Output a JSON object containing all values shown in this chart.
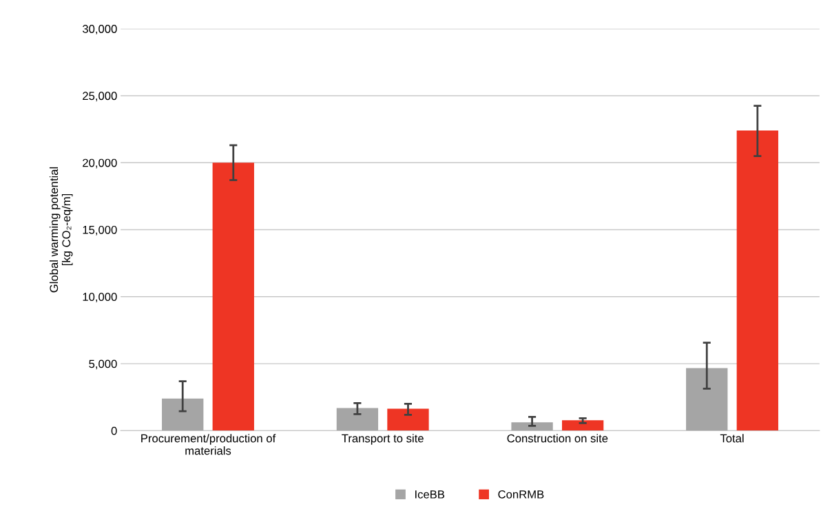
{
  "chart_data": {
    "type": "bar",
    "ylabel": "Global warming potential\n[kg CO₂-eq/m]",
    "categories": [
      "Procurement/production of\nmaterials",
      "Transport to site",
      "Construction on site",
      "Total"
    ],
    "series": [
      {
        "name": "IceBB",
        "color": "#a5a5a5",
        "values": [
          2400,
          1690,
          620,
          4670
        ],
        "errors": [
          [
            1450,
            3690
          ],
          [
            1230,
            2050
          ],
          [
            360,
            1030
          ],
          [
            3130,
            6560
          ]
        ]
      },
      {
        "name": "ConRMB",
        "color": "#ee3524",
        "values": [
          20000,
          1640,
          770,
          22400
        ],
        "errors": [
          [
            18700,
            21300
          ],
          [
            1180,
            2000
          ],
          [
            560,
            920
          ],
          [
            20500,
            24250
          ]
        ]
      }
    ],
    "ylim": [
      0,
      30000
    ],
    "yticks": [
      {
        "value": 0,
        "label": "0"
      },
      {
        "value": 5000,
        "label": "5,000"
      },
      {
        "value": 10000,
        "label": "10,000"
      },
      {
        "value": 15000,
        "label": "15,000"
      },
      {
        "value": 20000,
        "label": "20,000"
      },
      {
        "value": 25000,
        "label": "25,000"
      },
      {
        "value": 30000,
        "label": "30,000"
      }
    ],
    "grid": "y",
    "legend": "bottom"
  }
}
